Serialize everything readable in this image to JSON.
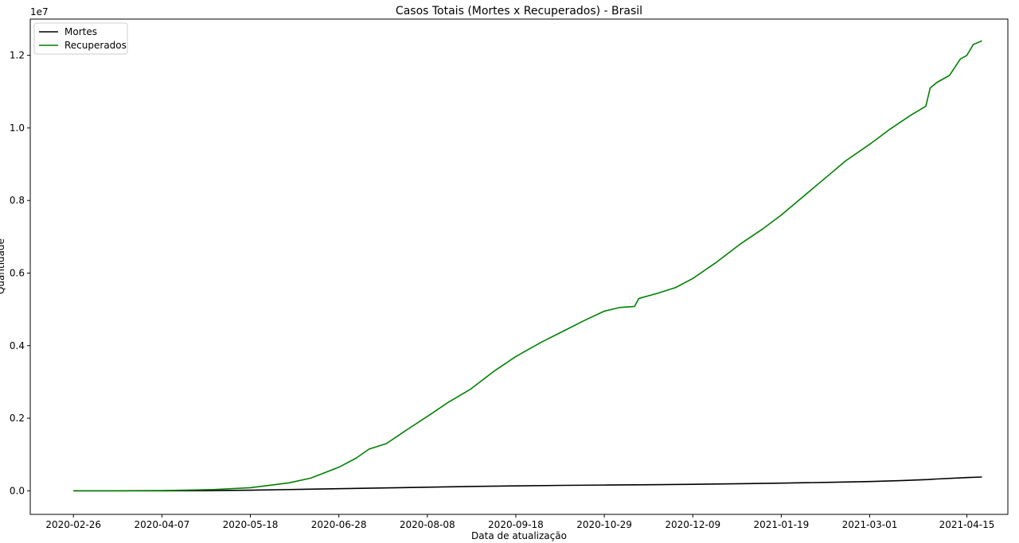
{
  "chart_data": {
    "type": "line",
    "title": "Casos Totais (Mortes x Recuperados) - Brasil",
    "xlabel": "Data de atualização",
    "ylabel": "Quantidade",
    "y_offset_label": "1e7",
    "x_tick_labels": [
      "2020-02-26",
      "2020-04-07",
      "2020-05-18",
      "2020-06-28",
      "2020-08-08",
      "2020-09-18",
      "2020-10-29",
      "2020-12-09",
      "2021-01-19",
      "2021-03-01",
      "2021-04-15"
    ],
    "y_tick_labels": [
      "0.0",
      "0.2",
      "0.4",
      "0.6",
      "0.8",
      "1.0",
      "1.2"
    ],
    "y_ticks": [
      0,
      2000000,
      4000000,
      6000000,
      8000000,
      10000000,
      12000000
    ],
    "xlim": [
      "2020-02-06",
      "2021-05-04"
    ],
    "ylim": [
      -650000,
      13000000
    ],
    "grid": false,
    "legend_position": "top-left",
    "series": [
      {
        "name": "Mortes",
        "color": "#000000",
        "points": [
          [
            "2020-02-26",
            0
          ],
          [
            "2020-03-20",
            0
          ],
          [
            "2020-04-07",
            700
          ],
          [
            "2020-04-25",
            3800
          ],
          [
            "2020-05-18",
            17000
          ],
          [
            "2020-06-05",
            35000
          ],
          [
            "2020-06-28",
            57000
          ],
          [
            "2020-07-20",
            80000
          ],
          [
            "2020-08-08",
            99000
          ],
          [
            "2020-08-30",
            120000
          ],
          [
            "2020-09-18",
            135000
          ],
          [
            "2020-10-10",
            150000
          ],
          [
            "2020-10-29",
            158000
          ],
          [
            "2020-11-20",
            168000
          ],
          [
            "2020-12-09",
            179000
          ],
          [
            "2020-12-31",
            195000
          ],
          [
            "2021-01-19",
            211000
          ],
          [
            "2021-02-10",
            233000
          ],
          [
            "2021-03-01",
            255000
          ],
          [
            "2021-03-15",
            280000
          ],
          [
            "2021-03-28",
            310000
          ],
          [
            "2021-04-01",
            325000
          ],
          [
            "2021-04-15",
            365000
          ],
          [
            "2021-04-22",
            380000
          ]
        ]
      },
      {
        "name": "Recuperados",
        "color": "#008000",
        "points": [
          [
            "2020-02-26",
            0
          ],
          [
            "2020-03-15",
            0
          ],
          [
            "2020-04-07",
            5000
          ],
          [
            "2020-04-20",
            20000
          ],
          [
            "2020-05-01",
            35000
          ],
          [
            "2020-05-18",
            85000
          ],
          [
            "2020-05-28",
            160000
          ],
          [
            "2020-06-05",
            220000
          ],
          [
            "2020-06-15",
            350000
          ],
          [
            "2020-06-28",
            650000
          ],
          [
            "2020-07-06",
            900000
          ],
          [
            "2020-07-12",
            1150000
          ],
          [
            "2020-07-20",
            1300000
          ],
          [
            "2020-07-30",
            1700000
          ],
          [
            "2020-08-08",
            2050000
          ],
          [
            "2020-08-18",
            2450000
          ],
          [
            "2020-08-28",
            2800000
          ],
          [
            "2020-09-08",
            3300000
          ],
          [
            "2020-09-18",
            3700000
          ],
          [
            "2020-09-30",
            4100000
          ],
          [
            "2020-10-10",
            4400000
          ],
          [
            "2020-10-20",
            4700000
          ],
          [
            "2020-10-29",
            4950000
          ],
          [
            "2020-11-05",
            5050000
          ],
          [
            "2020-11-12",
            5080000
          ],
          [
            "2020-11-14",
            5300000
          ],
          [
            "2020-11-23",
            5450000
          ],
          [
            "2020-12-01",
            5600000
          ],
          [
            "2020-12-09",
            5850000
          ],
          [
            "2020-12-20",
            6300000
          ],
          [
            "2020-12-31",
            6800000
          ],
          [
            "2021-01-10",
            7200000
          ],
          [
            "2021-01-19",
            7600000
          ],
          [
            "2021-01-29",
            8100000
          ],
          [
            "2021-02-08",
            8600000
          ],
          [
            "2021-02-18",
            9100000
          ],
          [
            "2021-03-01",
            9550000
          ],
          [
            "2021-03-10",
            9950000
          ],
          [
            "2021-03-20",
            10350000
          ],
          [
            "2021-03-27",
            10600000
          ],
          [
            "2021-03-29",
            11100000
          ],
          [
            "2021-04-01",
            11250000
          ],
          [
            "2021-04-07",
            11450000
          ],
          [
            "2021-04-12",
            11900000
          ],
          [
            "2021-04-15",
            12000000
          ],
          [
            "2021-04-18",
            12300000
          ],
          [
            "2021-04-22",
            12400000
          ]
        ]
      }
    ]
  }
}
